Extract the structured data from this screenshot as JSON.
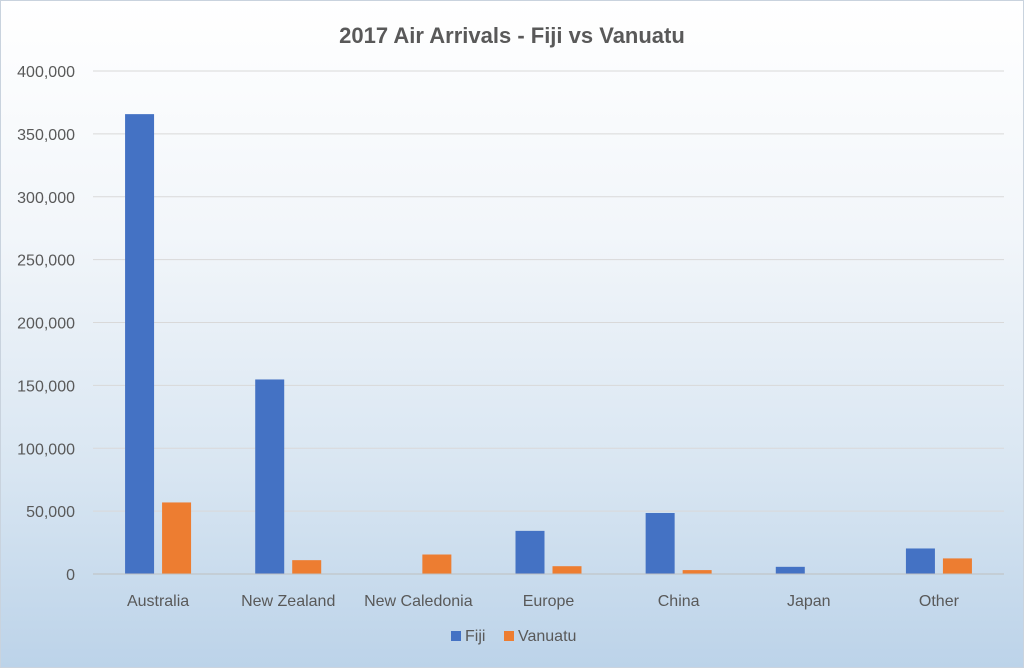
{
  "chart_data": {
    "type": "bar",
    "title": "2017 Air Arrivals - Fiji vs Vanuatu",
    "xlabel": "",
    "ylabel": "",
    "categories": [
      "Australia",
      "New Zealand",
      "New Caledonia",
      "Europe",
      "China",
      "Japan",
      "Other"
    ],
    "series": [
      {
        "name": "Fiji",
        "color": "#4472c4",
        "values": [
          365700,
          154700,
          0,
          34300,
          48500,
          5700,
          20300
        ]
      },
      {
        "name": "Vanuatu",
        "color": "#ed7d31",
        "values": [
          56900,
          11000,
          15500,
          6200,
          3100,
          0,
          12400
        ]
      }
    ],
    "ylim": [
      0,
      400000
    ],
    "yticks": [
      "0",
      "50,000",
      "100,000",
      "150,000",
      "200,000",
      "250,000",
      "300,000",
      "350,000",
      "400,000"
    ],
    "ytick_values": [
      0,
      50000,
      100000,
      150000,
      200000,
      250000,
      300000,
      350000,
      400000
    ],
    "grid": true,
    "legend_position": "bottom"
  }
}
